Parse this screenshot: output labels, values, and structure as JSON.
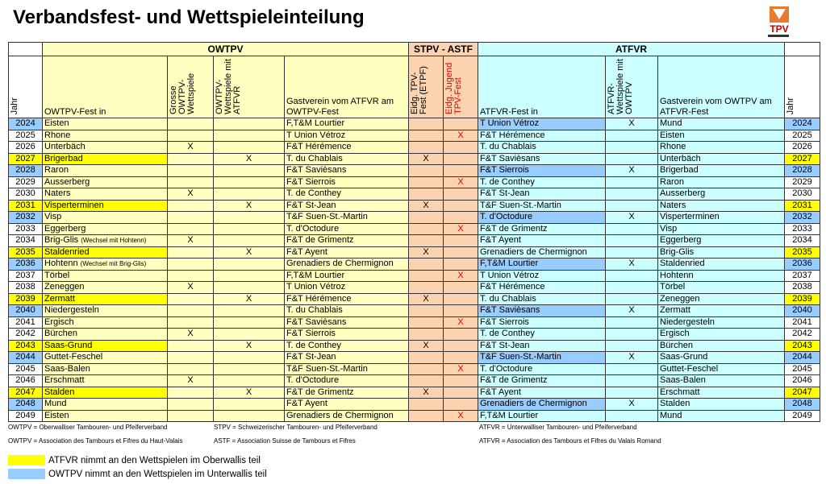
{
  "header": {
    "title": "Verbandsfest- und Wettspieleinteilung",
    "logo_text": "TPV"
  },
  "table": {
    "groups": [
      "OWTPV",
      "STPV - ASTF",
      "ATFVR"
    ],
    "columns": [
      "Jahr",
      "OWTPV-Fest in",
      "Grosse OWTPV-Wettspiele",
      "OWTPV-Wettspiele mit ATFVR",
      "Gastverein vom ATFVR am OWTPV-Fest",
      "Eidg. TPV-Fest (ETPF)",
      "Eidg. Jugend TPV-Fest",
      "ATFVR-Fest in",
      "ATFVR-Wettspiele mit OWTPV",
      "Gastverein vom OWTPV am ATFVR-Fest",
      "Jahr"
    ],
    "rows": [
      {
        "year": "2024",
        "fest": "Eisten",
        "grosse": null,
        "mit_atfvr": null,
        "gast_atfvr": "F,T&M Lourtier",
        "etpf": null,
        "jugend": null,
        "atfvr_fest": "T Union Vétroz",
        "atfvr_mit": "X",
        "gast_owtpv": "Mund",
        "highlight": "blue"
      },
      {
        "year": "2025",
        "fest": "Rhone",
        "grosse": null,
        "mit_atfvr": null,
        "gast_atfvr": "T Union Vétroz",
        "etpf": null,
        "jugend": "X",
        "atfvr_fest": "F&T Hérémence",
        "atfvr_mit": null,
        "gast_owtpv": "Eisten"
      },
      {
        "year": "2026",
        "fest": "Unterbäch",
        "grosse": "X",
        "mit_atfvr": null,
        "gast_atfvr": "F&T Hérémence",
        "etpf": null,
        "jugend": null,
        "atfvr_fest": "T. du Chablais",
        "atfvr_mit": null,
        "gast_owtpv": "Rhone"
      },
      {
        "year": "2027",
        "fest": "Brigerbad",
        "grosse": null,
        "mit_atfvr": "X",
        "gast_atfvr": "T. du Chablais",
        "etpf": "X",
        "jugend": null,
        "atfvr_fest": "F&T Savièsans",
        "atfvr_mit": null,
        "gast_owtpv": "Unterbäch",
        "highlight": "yellow"
      },
      {
        "year": "2028",
        "fest": "Raron",
        "grosse": null,
        "mit_atfvr": null,
        "gast_atfvr": "F&T Savièsans",
        "etpf": null,
        "jugend": null,
        "atfvr_fest": "F&T Sierrois",
        "atfvr_mit": "X",
        "gast_owtpv": "Brigerbad",
        "highlight": "blue"
      },
      {
        "year": "2029",
        "fest": "Ausserberg",
        "grosse": null,
        "mit_atfvr": null,
        "gast_atfvr": "F&T Sierrois",
        "etpf": null,
        "jugend": "X",
        "atfvr_fest": "T. de Conthey",
        "atfvr_mit": null,
        "gast_owtpv": "Raron"
      },
      {
        "year": "2030",
        "fest": "Naters",
        "grosse": "X",
        "mit_atfvr": null,
        "gast_atfvr": "T. de Conthey",
        "etpf": null,
        "jugend": null,
        "atfvr_fest": "F&T St-Jean",
        "atfvr_mit": null,
        "gast_owtpv": "Ausserberg"
      },
      {
        "year": "2031",
        "fest": "Visperterminen",
        "grosse": null,
        "mit_atfvr": "X",
        "gast_atfvr": "F&T St-Jean",
        "etpf": "X",
        "jugend": null,
        "atfvr_fest": "T&F Suen-St.-Martin",
        "atfvr_mit": null,
        "gast_owtpv": "Naters",
        "highlight": "yellow"
      },
      {
        "year": "2032",
        "fest": "Visp",
        "grosse": null,
        "mit_atfvr": null,
        "gast_atfvr": "T&F Suen-St.-Martin",
        "etpf": null,
        "jugend": null,
        "atfvr_fest": "T. d'Octodure",
        "atfvr_mit": "X",
        "gast_owtpv": "Visperterminen",
        "highlight": "blue"
      },
      {
        "year": "2033",
        "fest": "Eggerberg",
        "grosse": null,
        "mit_atfvr": null,
        "gast_atfvr": "T. d'Octodure",
        "etpf": null,
        "jugend": "X",
        "atfvr_fest": "F&T de Grimentz",
        "atfvr_mit": null,
        "gast_owtpv": "Visp"
      },
      {
        "year": "2034",
        "fest": "Brig-Glis",
        "fest_note": "(Wechsel mit Hohtenn)",
        "grosse": "X",
        "mit_atfvr": null,
        "gast_atfvr": "F&T de Grimentz",
        "etpf": null,
        "jugend": null,
        "atfvr_fest": "F&T Ayent",
        "atfvr_mit": null,
        "gast_owtpv": "Eggerberg"
      },
      {
        "year": "2035",
        "fest": "Staldenried",
        "grosse": null,
        "mit_atfvr": "X",
        "gast_atfvr": "F&T Ayent",
        "etpf": "X",
        "jugend": null,
        "atfvr_fest": "Grenadiers de Chermignon",
        "atfvr_mit": null,
        "gast_owtpv": "Brig-Glis",
        "highlight": "yellow"
      },
      {
        "year": "2036",
        "fest": "Hohtenn",
        "fest_note": "(Wechsel mit Brig-Glis)",
        "grosse": null,
        "mit_atfvr": null,
        "gast_atfvr": "Grenadiers de Chermignon",
        "etpf": null,
        "jugend": null,
        "atfvr_fest": "F,T&M Lourtier",
        "atfvr_mit": "X",
        "gast_owtpv": "Staldenried",
        "highlight": "blue"
      },
      {
        "year": "2037",
        "fest": "Törbel",
        "grosse": null,
        "mit_atfvr": null,
        "gast_atfvr": "F,T&M Lourtier",
        "etpf": null,
        "jugend": "X",
        "atfvr_fest": "T Union Vétroz",
        "atfvr_mit": null,
        "gast_owtpv": "Hohtenn"
      },
      {
        "year": "2038",
        "fest": "Zeneggen",
        "grosse": "X",
        "mit_atfvr": null,
        "gast_atfvr": "T Union Vétroz",
        "etpf": null,
        "jugend": null,
        "atfvr_fest": "F&T Hérémence",
        "atfvr_mit": null,
        "gast_owtpv": "Törbel"
      },
      {
        "year": "2039",
        "fest": "Zermatt",
        "grosse": null,
        "mit_atfvr": "X",
        "gast_atfvr": "F&T Hérémence",
        "etpf": "X",
        "jugend": null,
        "atfvr_fest": "T. du Chablais",
        "atfvr_mit": null,
        "gast_owtpv": "Zeneggen",
        "highlight": "yellow"
      },
      {
        "year": "2040",
        "fest": "Niedergesteln",
        "grosse": null,
        "mit_atfvr": null,
        "gast_atfvr": "T. du Chablais",
        "etpf": null,
        "jugend": null,
        "atfvr_fest": "F&T Savièsans",
        "atfvr_mit": "X",
        "gast_owtpv": "Zermatt",
        "highlight": "blue"
      },
      {
        "year": "2041",
        "fest": "Ergisch",
        "grosse": null,
        "mit_atfvr": null,
        "gast_atfvr": "F&T Savièsans",
        "etpf": null,
        "jugend": "X",
        "atfvr_fest": "F&T Sierrois",
        "atfvr_mit": null,
        "gast_owtpv": "Niedergesteln"
      },
      {
        "year": "2042",
        "fest": "Bürchen",
        "grosse": "X",
        "mit_atfvr": null,
        "gast_atfvr": "F&T Sierrois",
        "etpf": null,
        "jugend": null,
        "atfvr_fest": "T. de Conthey",
        "atfvr_mit": null,
        "gast_owtpv": "Ergisch"
      },
      {
        "year": "2043",
        "fest": "Saas-Grund",
        "grosse": null,
        "mit_atfvr": "X",
        "gast_atfvr": "T. de Conthey",
        "etpf": "X",
        "jugend": null,
        "atfvr_fest": "F&T St-Jean",
        "atfvr_mit": null,
        "gast_owtpv": "Bürchen",
        "highlight": "yellow"
      },
      {
        "year": "2044",
        "fest": "Guttet-Feschel",
        "grosse": null,
        "mit_atfvr": null,
        "gast_atfvr": "F&T St-Jean",
        "etpf": null,
        "jugend": null,
        "atfvr_fest": "T&F Suen-St.-Martin",
        "atfvr_mit": "X",
        "gast_owtpv": "Saas-Grund",
        "highlight": "blue"
      },
      {
        "year": "2045",
        "fest": "Saas-Balen",
        "grosse": null,
        "mit_atfvr": null,
        "gast_atfvr": "T&F Suen-St.-Martin",
        "etpf": null,
        "jugend": "X",
        "atfvr_fest": "T. d'Octodure",
        "atfvr_mit": null,
        "gast_owtpv": "Guttet-Feschel"
      },
      {
        "year": "2046",
        "fest": "Erschmatt",
        "grosse": "X",
        "mit_atfvr": null,
        "gast_atfvr": "T. d'Octodure",
        "etpf": null,
        "jugend": null,
        "atfvr_fest": "F&T de Grimentz",
        "atfvr_mit": null,
        "gast_owtpv": "Saas-Balen"
      },
      {
        "year": "2047",
        "fest": "Stalden",
        "grosse": null,
        "mit_atfvr": "X",
        "gast_atfvr": "F&T de Grimentz",
        "etpf": "X",
        "jugend": null,
        "atfvr_fest": "F&T Ayent",
        "atfvr_mit": null,
        "gast_owtpv": "Erschmatt",
        "highlight": "yellow"
      },
      {
        "year": "2048",
        "fest": "Mund",
        "grosse": null,
        "mit_atfvr": null,
        "gast_atfvr": "F&T Ayent",
        "etpf": null,
        "jugend": null,
        "atfvr_fest": "Grenadiers de Chermignon",
        "atfvr_mit": "X",
        "gast_owtpv": "Stalden",
        "highlight": "blue"
      },
      {
        "year": "2049",
        "fest": "Eisten",
        "grosse": null,
        "mit_atfvr": null,
        "gast_atfvr": "Grenadiers de Chermignon",
        "etpf": null,
        "jugend": "X",
        "atfvr_fest": "F,T&M Lourtier",
        "atfvr_mit": null,
        "gast_owtpv": "Mund"
      }
    ]
  },
  "footnotes": [
    [
      "OWTPV = Oberwalliser Tambouren- und Pfeiferverband",
      "STPV = Schweizerischer Tambouren- und Pfeiferverband",
      "ATFVR = Unterwalliser Tambouren- und Pfeiferverband"
    ],
    [
      "OWTPV = Association des Tambours et Fifres du Haut-Valais",
      "ASTF = Association Suisse de Tambours et Fifres",
      "ATFVR = Association des Tambours et Fifres du Valais Romand"
    ]
  ],
  "legend": [
    {
      "color": "#ffff00",
      "label": "ATFVR nimmt an den Wettspielen im Oberwallis teil"
    },
    {
      "color": "#99ccff",
      "label": "OWTPV nimmt an den Wettspielen im Unterwallis teil"
    }
  ]
}
